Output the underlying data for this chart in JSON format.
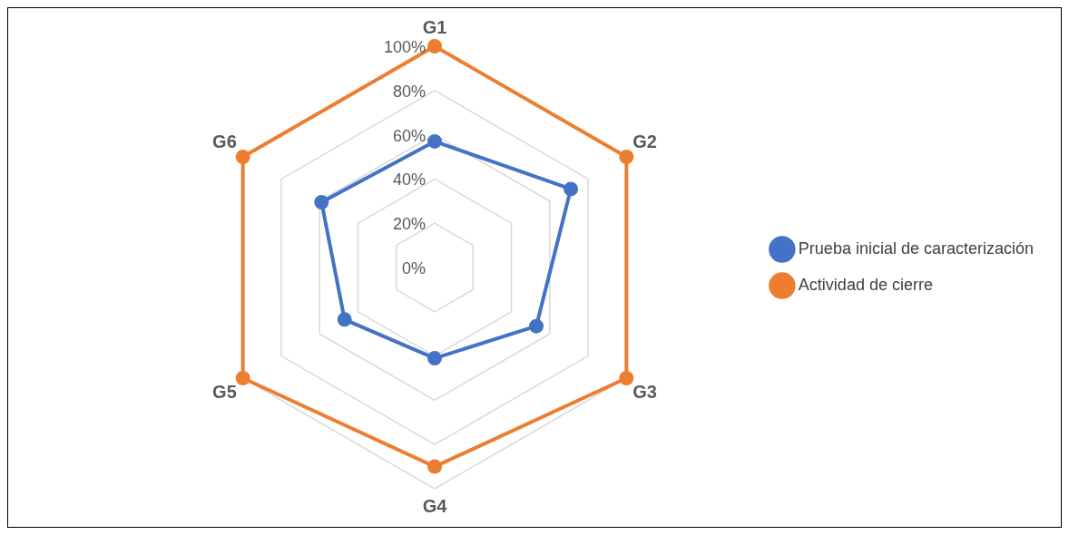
{
  "chart_data": {
    "type": "radar",
    "categories": [
      "G1",
      "G2",
      "G3",
      "G4",
      "G5",
      "G6"
    ],
    "series": [
      {
        "name": "Prueba inicial de caracterización",
        "color": "#4472c4",
        "values": [
          57,
          71,
          53,
          41,
          47,
          59
        ]
      },
      {
        "name": "Actividad de cierre",
        "color": "#ed7d31",
        "values": [
          100,
          100,
          100,
          90,
          100,
          100
        ]
      }
    ],
    "ylim": [
      0,
      100
    ],
    "yticks": [
      {
        "value": 0,
        "label": "0%"
      },
      {
        "value": 20,
        "label": "20%"
      },
      {
        "value": 40,
        "label": "40%"
      },
      {
        "value": 60,
        "label": "60%"
      },
      {
        "value": 80,
        "label": "80%"
      },
      {
        "value": 100,
        "label": "100%"
      }
    ],
    "grid": true,
    "legend": "right",
    "marker": "circle",
    "line_style": "solid"
  }
}
